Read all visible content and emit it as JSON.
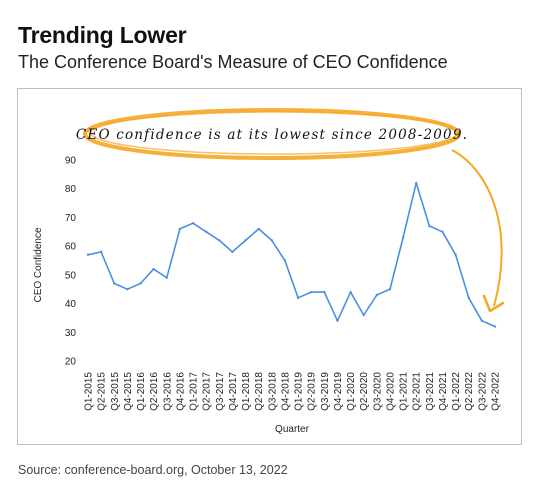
{
  "title": "Trending Lower",
  "subtitle": "The Conference Board's Measure of CEO Confidence",
  "source": "Source: conference-board.org, October 13, 2022",
  "annotation": "CEO confidence is at its lowest since 2008-2009.",
  "colors": {
    "line": "#4a90e2",
    "highlight": "#f5a623",
    "grid": "#e5e5e5"
  },
  "chart_data": {
    "type": "line",
    "title": "",
    "xlabel": "Quarter",
    "ylabel": "CEO Confidence",
    "ylim": [
      20,
      90
    ],
    "yticks": [
      20,
      30,
      40,
      50,
      60,
      70,
      80,
      90
    ],
    "grid": false,
    "categories": [
      "Q1-2015",
      "Q2-2015",
      "Q3-2015",
      "Q4-2015",
      "Q1-2016",
      "Q2-2016",
      "Q3-2016",
      "Q4-2016",
      "Q1-2017",
      "Q2-2017",
      "Q3-2017",
      "Q4-2017",
      "Q1-2018",
      "Q2-2018",
      "Q3-2018",
      "Q4-2018",
      "Q1-2019",
      "Q2-2019",
      "Q3-2019",
      "Q4-2019",
      "Q1-2020",
      "Q2-2020",
      "Q3-2020",
      "Q4-2020",
      "Q1-2021",
      "Q2-2021",
      "Q3-2021",
      "Q4-2021",
      "Q1-2022",
      "Q2-2022",
      "Q3-2022",
      "Q4-2022"
    ],
    "series": [
      {
        "values": [
          57,
          58,
          47,
          45,
          47,
          52,
          49,
          66,
          68,
          65,
          62,
          58,
          62,
          66,
          62,
          55,
          42,
          44,
          44,
          34,
          44,
          36,
          43,
          45,
          63,
          82,
          67,
          65,
          57,
          42,
          34,
          32
        ]
      }
    ]
  }
}
